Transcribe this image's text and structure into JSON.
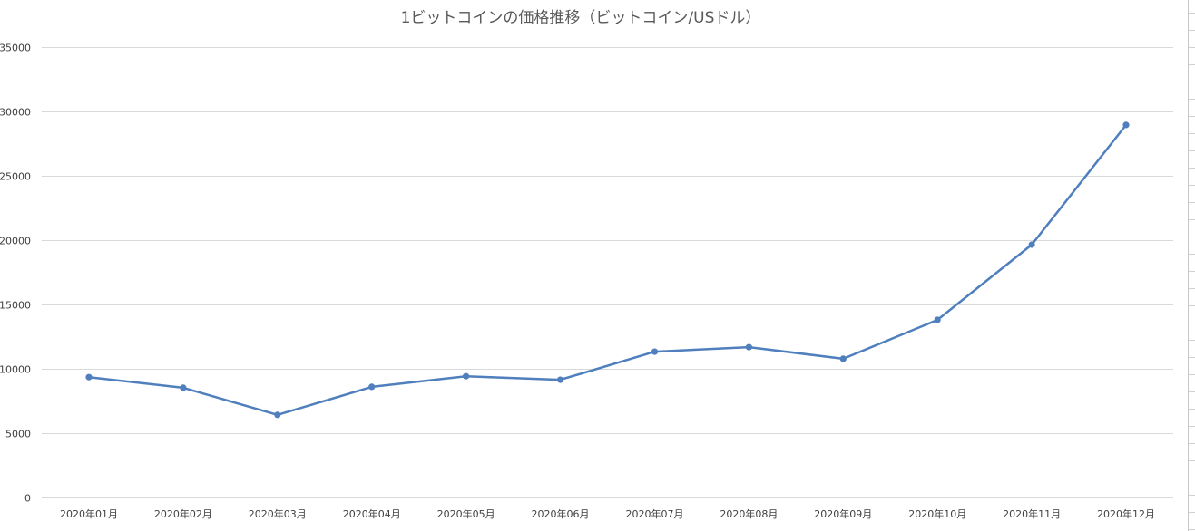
{
  "chart_data": {
    "type": "line",
    "title": "1ビットコインの価格推移（ビットコイン/USドル）",
    "xlabel": "",
    "ylabel": "",
    "categories": [
      "2020年01月",
      "2020年02月",
      "2020年03月",
      "2020年04月",
      "2020年05月",
      "2020年06月",
      "2020年07月",
      "2020年08月",
      "2020年09月",
      "2020年10月",
      "2020年11月",
      "2020年12月"
    ],
    "series": [
      {
        "values": [
          9350,
          8530,
          6420,
          8600,
          9420,
          9150,
          11330,
          11680,
          10780,
          13800,
          19650,
          28950
        ],
        "color": "#4f7fbd"
      }
    ],
    "ylim": [
      0,
      35000
    ],
    "yticks": [
      0,
      5000,
      10000,
      15000,
      20000,
      25000,
      30000,
      35000
    ],
    "grid": true,
    "legend": "none"
  }
}
